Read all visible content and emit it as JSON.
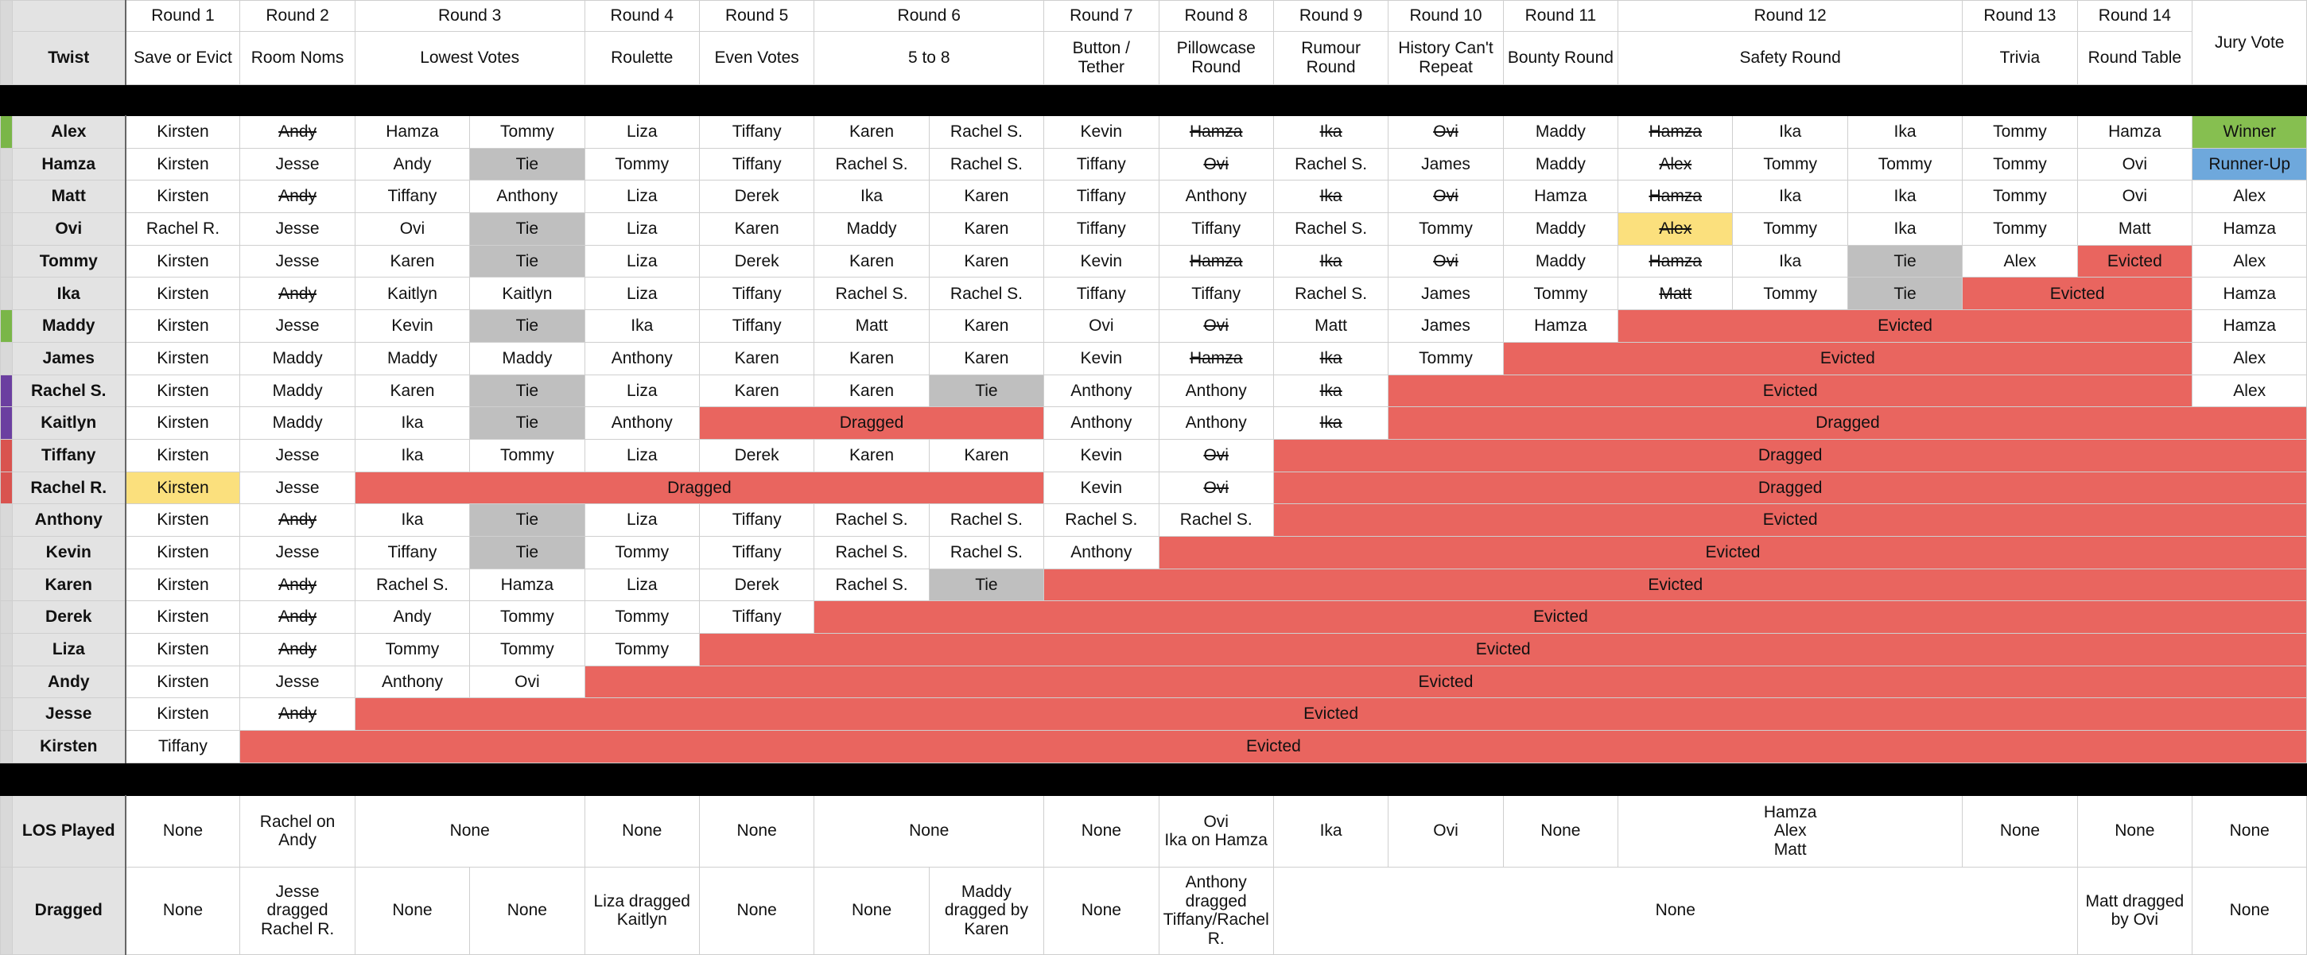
{
  "twist_label": "Twist",
  "jury_header": "Jury Vote",
  "rounds": [
    {
      "name": "Round 1",
      "twist": "Save or Evict"
    },
    {
      "name": "Round 2",
      "twist": "Room Noms"
    },
    {
      "name": "Round 3",
      "twist": "Lowest Votes"
    },
    {
      "name": "Round 4",
      "twist": "Roulette"
    },
    {
      "name": "Round 5",
      "twist": "Even Votes"
    },
    {
      "name": "Round 6",
      "twist": "5 to 8"
    },
    {
      "name": "Round 7",
      "twist": "Button / Tether"
    },
    {
      "name": "Round 8",
      "twist": "Pillowcase Round"
    },
    {
      "name": "Round 9",
      "twist": "Rumour Round"
    },
    {
      "name": "Round 10",
      "twist": "History Can't Repeat"
    },
    {
      "name": "Round 11",
      "twist": "Bounty Round"
    },
    {
      "name": "Round 12",
      "twist": "Safety Round"
    },
    {
      "name": "Round 13",
      "twist": "Trivia"
    },
    {
      "name": "Round 14",
      "twist": "Round Table"
    }
  ],
  "players": [
    {
      "name": "Alex",
      "votes": [
        "Kirsten",
        "Andy",
        "Hamza",
        "Tommy",
        "Liza",
        "Tiffany",
        "Karen",
        "Rachel S.",
        "Kevin",
        "Hamza",
        "Ika",
        "Ovi",
        "Maddy",
        "Hamza",
        "Ika",
        "Ika",
        "Tommy",
        "Hamza",
        "Winner"
      ]
    },
    {
      "name": "Hamza",
      "votes": [
        "Kirsten",
        "Jesse",
        "Andy",
        "Tie",
        "Tommy",
        "Tiffany",
        "Rachel S.",
        "Rachel S.",
        "Tiffany",
        "Ovi",
        "Rachel S.",
        "James",
        "Maddy",
        "Alex",
        "Tommy",
        "Tommy",
        "Tommy",
        "Ovi",
        "Runner-Up"
      ]
    },
    {
      "name": "Matt",
      "votes": [
        "Kirsten",
        "Andy",
        "Tiffany",
        "Anthony",
        "Liza",
        "Derek",
        "Ika",
        "Karen",
        "Tiffany",
        "Anthony",
        "Ika",
        "Ovi",
        "Hamza",
        "Hamza",
        "Ika",
        "Ika",
        "Tommy",
        "Ovi",
        "Alex"
      ]
    },
    {
      "name": "Ovi",
      "votes": [
        "Rachel R.",
        "Jesse",
        "Ovi",
        "Tie",
        "Liza",
        "Karen",
        "Maddy",
        "Karen",
        "Tiffany",
        "Tiffany",
        "Rachel S.",
        "Tommy",
        "Maddy",
        "Alex",
        "Tommy",
        "Ika",
        "Tommy",
        "Matt",
        "Hamza"
      ]
    },
    {
      "name": "Tommy",
      "votes": [
        "Kirsten",
        "Jesse",
        "Karen",
        "Tie",
        "Liza",
        "Derek",
        "Karen",
        "Karen",
        "Kevin",
        "Hamza",
        "Ika",
        "Ovi",
        "Maddy",
        "Hamza",
        "Ika",
        "Tie",
        "Alex",
        "Evicted",
        "Alex"
      ]
    },
    {
      "name": "Ika",
      "votes": [
        "Kirsten",
        "Andy",
        "Kaitlyn",
        "Kaitlyn",
        "Liza",
        "Tiffany",
        "Rachel S.",
        "Rachel S.",
        "Tiffany",
        "Tiffany",
        "Rachel S.",
        "James",
        "Tommy",
        "Matt",
        "Tommy",
        "Tie",
        "Evicted",
        "Hamza"
      ]
    },
    {
      "name": "Maddy",
      "votes": [
        "Kirsten",
        "Jesse",
        "Kevin",
        "Tie",
        "Ika",
        "Tiffany",
        "Matt",
        "Karen",
        "Ovi",
        "Ovi",
        "Matt",
        "James",
        "Hamza",
        "Evicted",
        "Hamza"
      ]
    },
    {
      "name": "James",
      "votes": [
        "Kirsten",
        "Maddy",
        "Maddy",
        "Maddy",
        "Anthony",
        "Karen",
        "Karen",
        "Karen",
        "Kevin",
        "Hamza",
        "Ika",
        "Tommy",
        "Evicted",
        "Alex"
      ]
    },
    {
      "name": "Rachel S.",
      "votes": [
        "Kirsten",
        "Maddy",
        "Karen",
        "Tie",
        "Liza",
        "Karen",
        "Karen",
        "Tie",
        "Anthony",
        "Anthony",
        "Ika",
        "Evicted",
        "Alex"
      ]
    },
    {
      "name": "Kaitlyn",
      "votes": [
        "Kirsten",
        "Maddy",
        "Ika",
        "Tie",
        "Anthony",
        "Dragged",
        "Anthony",
        "Anthony",
        "Ika",
        "Dragged"
      ]
    },
    {
      "name": "Tiffany",
      "votes": [
        "Kirsten",
        "Jesse",
        "Ika",
        "Tommy",
        "Liza",
        "Derek",
        "Karen",
        "Karen",
        "Kevin",
        "Ovi",
        "Dragged"
      ]
    },
    {
      "name": "Rachel R.",
      "votes": [
        "Kirsten",
        "Jesse",
        "Dragged",
        "Kevin",
        "Ovi",
        "Dragged"
      ]
    },
    {
      "name": "Anthony",
      "votes": [
        "Kirsten",
        "Andy",
        "Ika",
        "Tie",
        "Liza",
        "Tiffany",
        "Rachel S.",
        "Rachel S.",
        "Rachel S.",
        "Rachel S.",
        "Evicted"
      ]
    },
    {
      "name": "Kevin",
      "votes": [
        "Kirsten",
        "Jesse",
        "Tiffany",
        "Tie",
        "Tommy",
        "Tiffany",
        "Rachel S.",
        "Rachel S.",
        "Anthony",
        "Evicted"
      ]
    },
    {
      "name": "Karen",
      "votes": [
        "Kirsten",
        "Andy",
        "Rachel S.",
        "Hamza",
        "Liza",
        "Derek",
        "Rachel S.",
        "Tie",
        "Evicted"
      ]
    },
    {
      "name": "Derek",
      "votes": [
        "Kirsten",
        "Andy",
        "Andy",
        "Tommy",
        "Tommy",
        "Tiffany",
        "Evicted"
      ]
    },
    {
      "name": "Liza",
      "votes": [
        "Kirsten",
        "Andy",
        "Tommy",
        "Tommy",
        "Tommy",
        "Evicted"
      ]
    },
    {
      "name": "Andy",
      "votes": [
        "Kirsten",
        "Jesse",
        "Anthony",
        "Ovi",
        "Evicted"
      ]
    },
    {
      "name": "Jesse",
      "votes": [
        "Kirsten",
        "Andy",
        "Evicted"
      ]
    },
    {
      "name": "Kirsten",
      "votes": [
        "Tiffany",
        "Evicted"
      ]
    }
  ],
  "los": {
    "label": "LOS Played",
    "cells": [
      "None",
      "Rachel on Andy",
      "None",
      "None",
      "None",
      "None",
      "None",
      "Ovi\nIka on Hamza",
      "Ika",
      "Ovi",
      "None",
      "Hamza\nAlex\nMatt",
      "None",
      "None",
      "None"
    ]
  },
  "dragged": {
    "label": "Dragged",
    "cells": [
      "None",
      "Jesse dragged Rachel R.",
      "None",
      "None",
      "Liza dragged Kaitlyn",
      "None",
      "None",
      "Maddy dragged by Karen",
      "None",
      "Anthony dragged Tiffany/Rachel R.",
      "None",
      "Matt dragged by Ovi",
      "None"
    ]
  }
}
